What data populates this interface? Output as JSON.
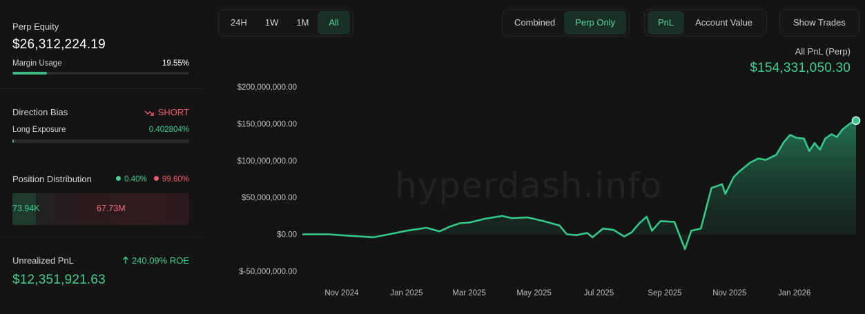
{
  "sidebar": {
    "equity": {
      "label": "Perp Equity",
      "value": "$26,312,224.19"
    },
    "margin": {
      "label": "Margin Usage",
      "value": "19.55%",
      "fraction": 0.1955
    },
    "bias": {
      "label": "Direction Bias",
      "value": "SHORT",
      "icon": "trend-down-icon",
      "exposure_label": "Long Exposure",
      "exposure_value": "0.402804%",
      "exposure_fraction": 0.004028
    },
    "distribution": {
      "label": "Position Distribution",
      "long_pct": "0.40%",
      "short_pct": "99.60%",
      "long_value": "73.94K",
      "short_value": "67.73M"
    },
    "unrealized": {
      "label": "Unrealized PnL",
      "roe": "240.09% ROE",
      "roe_icon": "arrow-up-icon",
      "value": "$12,351,921.63"
    }
  },
  "toolbar": {
    "ranges": [
      "24H",
      "1W",
      "1M",
      "All"
    ],
    "active_range": "All",
    "modes": [
      "Combined",
      "Perp Only"
    ],
    "active_mode": "Perp Only",
    "metrics": [
      "PnL",
      "Account Value"
    ],
    "active_metric": "PnL",
    "show_trades": "Show Trades"
  },
  "chart_header": {
    "title": "All PnL (Perp)",
    "value": "$154,331,050.30"
  },
  "watermark": "hyperdash.info",
  "colors": {
    "accent": "#3fcf8e",
    "negative": "#ef5f6d",
    "background": "#141414"
  },
  "chart_data": {
    "type": "area",
    "title": "All PnL (Perp)",
    "xlabel": "",
    "ylabel": "",
    "ylim": [
      -50000000,
      200000000
    ],
    "xlim": [
      "2024-09-25",
      "2026-02-28"
    ],
    "y_ticks": [
      "$200,000,000.00",
      "$150,000,000.00",
      "$100,000,000.00",
      "$50,000,000.00",
      "$0.00",
      "$-50,000,000.00"
    ],
    "y_tick_values": [
      200000000,
      150000000,
      100000000,
      50000000,
      0,
      -50000000
    ],
    "x_ticks": [
      "Nov 2024",
      "Jan 2025",
      "Mar 2025",
      "May 2025",
      "Jul 2025",
      "Sep 2025",
      "Nov 2025",
      "Jan 2026"
    ],
    "x_tick_dates": [
      "2024-11-01",
      "2025-01-01",
      "2025-03-01",
      "2025-05-01",
      "2025-07-01",
      "2025-09-01",
      "2025-11-01",
      "2026-01-01"
    ],
    "grid": false,
    "series": [
      {
        "x": [
          "2024-09-25",
          "2024-10-20",
          "2024-11-20",
          "2024-12-01",
          "2024-12-15",
          "2025-01-01",
          "2025-01-20",
          "2025-02-01",
          "2025-02-10",
          "2025-02-20",
          "2025-03-01",
          "2025-03-15",
          "2025-04-01",
          "2025-04-10",
          "2025-04-25",
          "2025-05-10",
          "2025-05-25",
          "2025-06-01",
          "2025-06-10",
          "2025-06-20",
          "2025-06-25",
          "2025-07-05",
          "2025-07-15",
          "2025-07-25",
          "2025-08-01",
          "2025-08-08",
          "2025-08-15",
          "2025-08-20",
          "2025-08-28",
          "2025-09-10",
          "2025-09-20",
          "2025-09-26",
          "2025-10-05",
          "2025-10-15",
          "2025-10-25",
          "2025-10-28",
          "2025-11-05",
          "2025-11-10",
          "2025-11-20",
          "2025-11-28",
          "2025-12-05",
          "2025-12-15",
          "2025-12-22",
          "2025-12-28",
          "2026-01-03",
          "2026-01-10",
          "2026-01-15",
          "2026-01-20",
          "2026-01-25",
          "2026-01-30",
          "2026-02-05",
          "2026-02-10",
          "2026-02-15",
          "2026-02-22",
          "2026-02-28"
        ],
        "y": [
          0,
          0,
          -3000000,
          -4000000,
          0,
          5000000,
          9000000,
          4000000,
          10000000,
          15000000,
          16000000,
          21000000,
          25000000,
          22000000,
          23000000,
          18000000,
          12000000,
          0,
          -1000000,
          2000000,
          -4000000,
          8000000,
          6000000,
          -3000000,
          3000000,
          15000000,
          24000000,
          5000000,
          18000000,
          17000000,
          -20000000,
          5000000,
          8000000,
          63000000,
          68000000,
          55000000,
          78000000,
          85000000,
          97000000,
          103000000,
          101000000,
          108000000,
          125000000,
          135000000,
          131000000,
          130000000,
          113000000,
          124000000,
          115000000,
          130000000,
          136000000,
          132000000,
          142000000,
          150000000,
          154331050
        ]
      }
    ]
  }
}
